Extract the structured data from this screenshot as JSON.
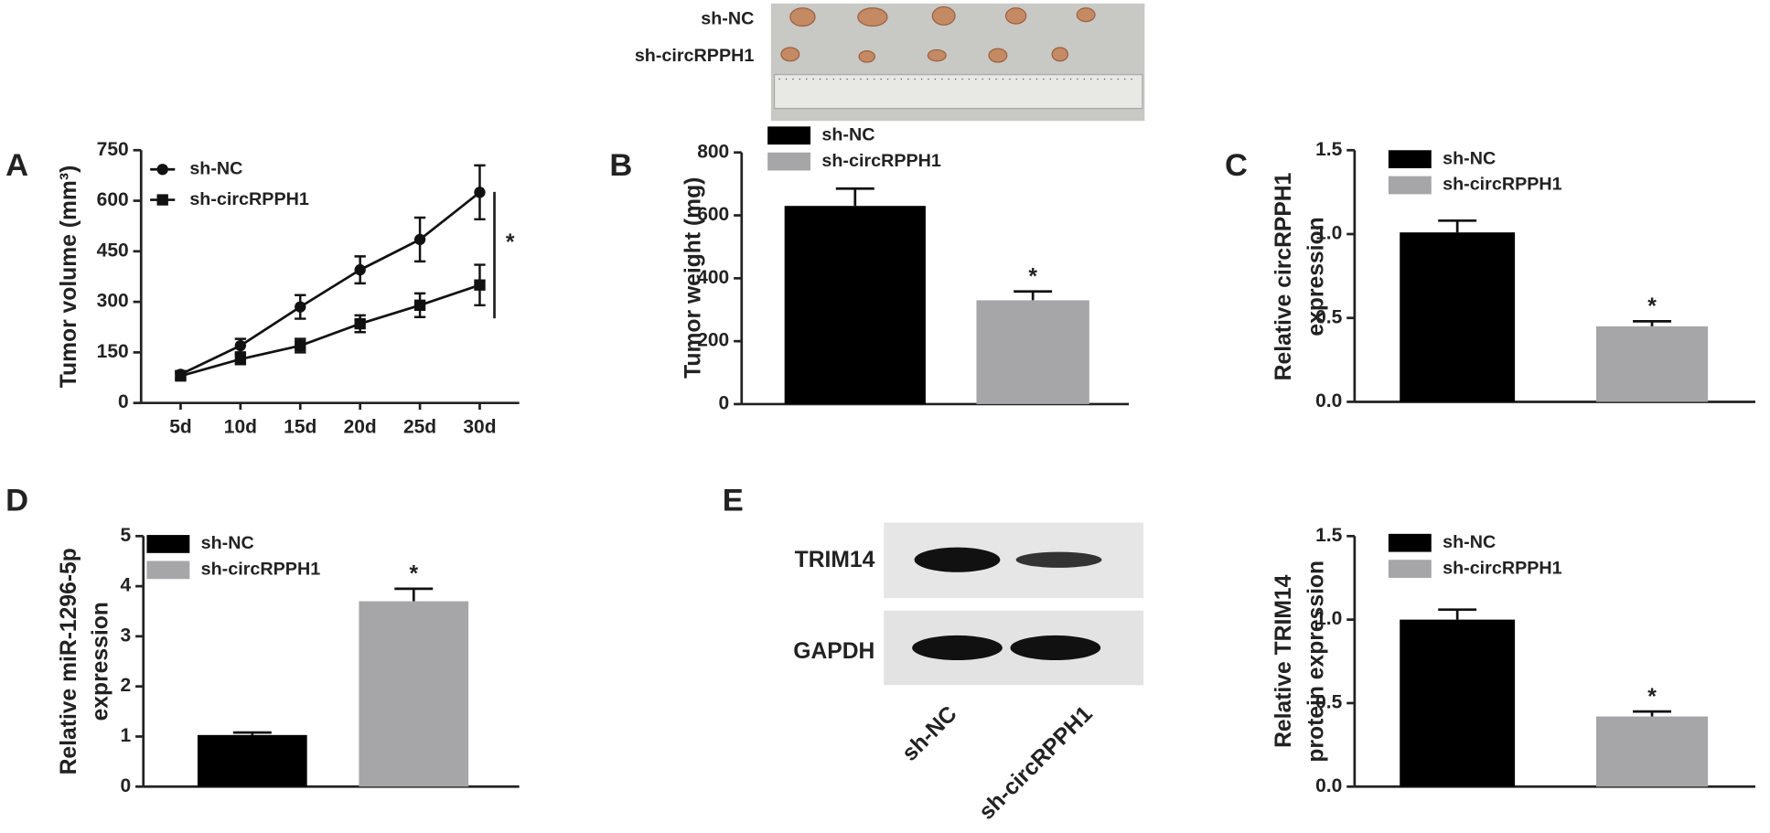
{
  "photo": {
    "rows": [
      "sh-NC",
      "sh-circRPPH1"
    ]
  },
  "blot": {
    "panel": "E",
    "bands": [
      "TRIM14",
      "GAPDH"
    ],
    "lanes": [
      "sh-NC",
      "sh-circRPPH1"
    ]
  },
  "chart_data": [
    {
      "type": "line",
      "panel": "A",
      "y_label": [
        "Tumor volume (mm³)"
      ],
      "categories": [
        "5d",
        "10d",
        "15d",
        "20d",
        "25d",
        "30d"
      ],
      "series": [
        {
          "name": "sh-NC",
          "color": "#111111",
          "marker": "circle",
          "values": [
            85,
            170,
            285,
            395,
            485,
            625
          ],
          "errors": [
            10,
            20,
            35,
            40,
            65,
            80
          ]
        },
        {
          "name": "sh-circRPPH1",
          "color": "#111111",
          "marker": "square",
          "values": [
            80,
            130,
            170,
            235,
            290,
            350
          ],
          "errors": [
            10,
            15,
            20,
            25,
            35,
            60
          ]
        }
      ],
      "ylim": [
        0,
        750
      ],
      "yticks": [
        0,
        150,
        300,
        450,
        600,
        750
      ],
      "annotation": "*"
    },
    {
      "type": "bar",
      "panel": "B",
      "y_label": [
        "Tumor weight (mg)"
      ],
      "series": [
        {
          "name": "sh-NC",
          "color": "#000000",
          "values": [
            630
          ],
          "errors": [
            55
          ]
        },
        {
          "name": "sh-circRPPH1",
          "color": "#a6a6a8",
          "values": [
            330
          ],
          "errors": [
            28
          ],
          "annotation": "*"
        }
      ],
      "ylim": [
        0,
        800
      ],
      "yticks": [
        0,
        200,
        400,
        600,
        800
      ]
    },
    {
      "type": "bar",
      "panel": "C",
      "y_label": [
        "Relative circRPPH1",
        "expression"
      ],
      "series": [
        {
          "name": "sh-NC",
          "color": "#000000",
          "values": [
            1.01
          ],
          "errors": [
            0.07
          ]
        },
        {
          "name": "sh-circRPPH1",
          "color": "#a6a6a8",
          "values": [
            0.45
          ],
          "errors": [
            0.03
          ],
          "annotation": "*"
        }
      ],
      "ylim": [
        0,
        1.5
      ],
      "yticks": [
        {
          "value": 0,
          "label": "0.0"
        },
        0.5,
        {
          "value": 1,
          "label": "1.0"
        },
        1.5
      ]
    },
    {
      "type": "bar",
      "panel": "D",
      "y_label": [
        "Relative miR-1296-5p",
        "expression"
      ],
      "series": [
        {
          "name": "sh-NC",
          "color": "#000000",
          "values": [
            1.03
          ],
          "errors": [
            0.05
          ]
        },
        {
          "name": "sh-circRPPH1",
          "color": "#a6a6a8",
          "values": [
            3.7
          ],
          "errors": [
            0.25
          ],
          "annotation": "*"
        }
      ],
      "ylim": [
        0,
        5
      ],
      "yticks": [
        0,
        1,
        2,
        3,
        4,
        5
      ]
    },
    {
      "type": "bar",
      "y_label": [
        "Relative TRIM14",
        "protein expression"
      ],
      "series": [
        {
          "name": "sh-NC",
          "color": "#000000",
          "values": [
            1.0
          ],
          "errors": [
            0.06
          ]
        },
        {
          "name": "sh-circRPPH1",
          "color": "#a6a6a8",
          "values": [
            0.42
          ],
          "errors": [
            0.03
          ],
          "annotation": "*"
        }
      ],
      "ylim": [
        0,
        1.5
      ],
      "yticks": [
        {
          "value": 0,
          "label": "0.0"
        },
        0.5,
        {
          "value": 1,
          "label": "1.0"
        },
        1.5
      ]
    }
  ]
}
